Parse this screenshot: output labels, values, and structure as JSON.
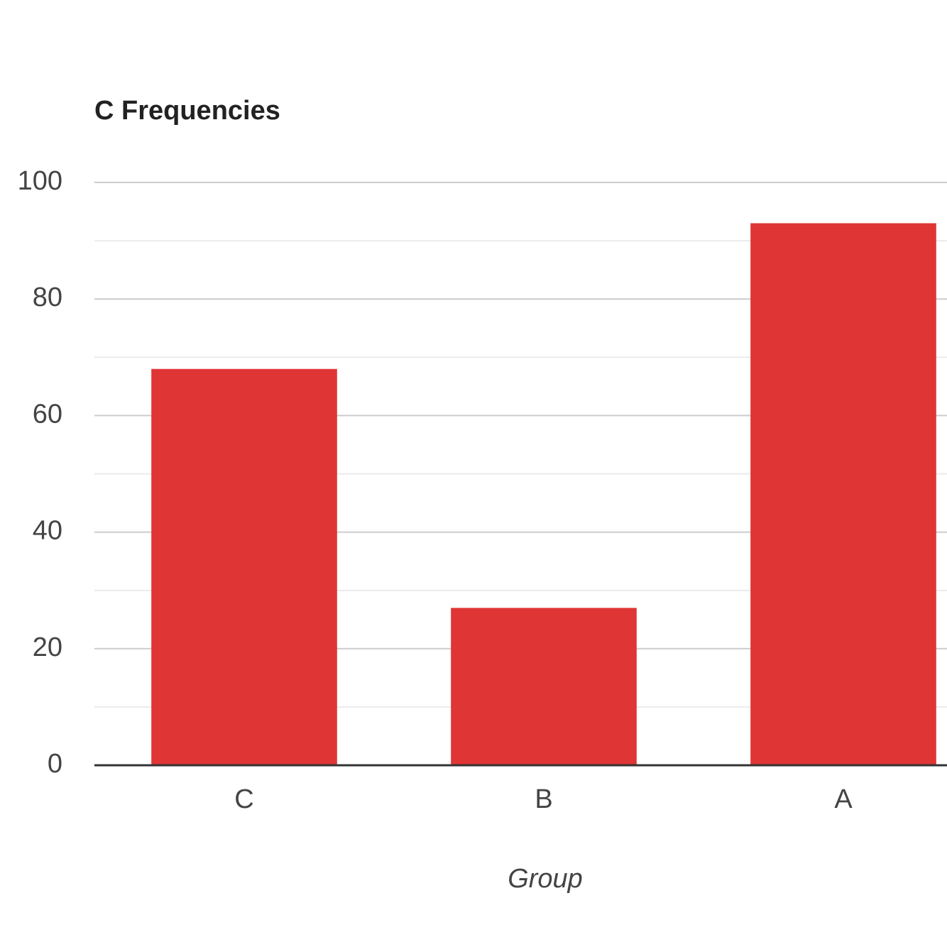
{
  "chart_data": {
    "type": "bar",
    "title": "C Frequencies",
    "x_label": "Group",
    "categories": [
      "C",
      "B",
      "A"
    ],
    "values": [
      68,
      27,
      93
    ],
    "color": "#e03535",
    "ylim": [
      0,
      100
    ],
    "yticks": [
      0,
      20,
      40,
      60,
      80,
      100
    ],
    "minor_yticks": [
      10,
      30,
      50,
      70,
      90
    ],
    "grid": true
  }
}
